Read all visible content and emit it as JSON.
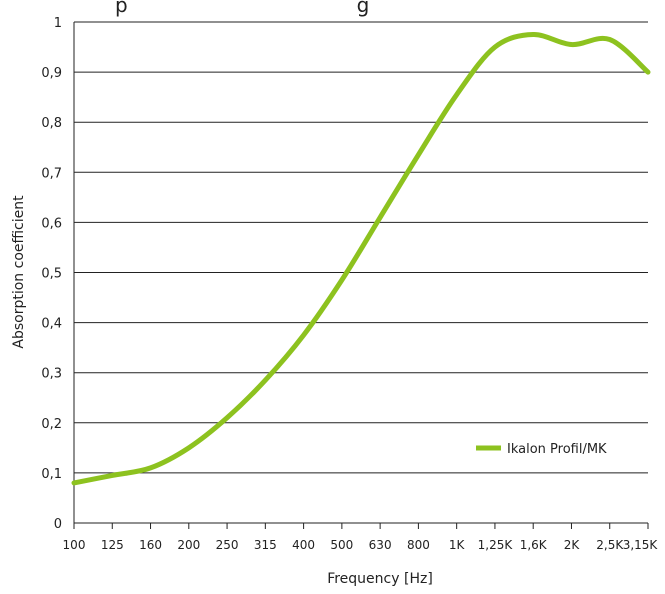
{
  "chart_data": {
    "type": "line",
    "title": "",
    "title_partial_visible": "p                                    g",
    "xlabel": "Frequency [Hz]",
    "ylabel": "Absorption coefficient",
    "x": [
      "100",
      "125",
      "160",
      "200",
      "250",
      "315",
      "400",
      "500",
      "630",
      "800",
      "1K",
      "1,25K",
      "1,6K",
      "2K",
      "2,5K",
      "3,15K"
    ],
    "ylim": [
      0,
      1
    ],
    "yticks": [
      "0",
      "0,1",
      "0,2",
      "0,3",
      "0,4",
      "0,5",
      "0,6",
      "0,7",
      "0,8",
      "0,9",
      "1"
    ],
    "grid": "horizontal",
    "legend_position": "bottom-right",
    "series": [
      {
        "name": "Ikalon Profil/MK",
        "color": "#8dc21f",
        "values": [
          0.08,
          0.095,
          0.11,
          0.15,
          0.21,
          0.285,
          0.375,
          0.485,
          0.61,
          0.735,
          0.855,
          0.95,
          0.975,
          0.955,
          0.965,
          0.9
        ]
      }
    ]
  }
}
